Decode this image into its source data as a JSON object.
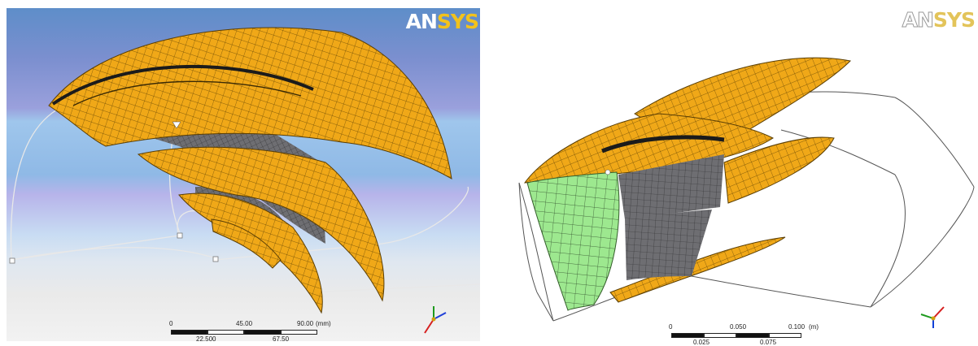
{
  "left_panel": {
    "logo": {
      "ans": "AN",
      "sys": "SYS"
    },
    "scale_bar": {
      "top_labels": [
        "0",
        "45.00",
        "90.00"
      ],
      "unit": "(mm)",
      "bottom_labels": [
        "22.500",
        "67.50"
      ]
    },
    "triad_icon": "xyz-axis-triad"
  },
  "right_panel": {
    "logo": {
      "ans": "AN",
      "sys": "SYS"
    },
    "scale_bar": {
      "top_labels": [
        "0",
        "0.050",
        "0.100"
      ],
      "unit": "(m)",
      "bottom_labels": [
        "0.025",
        "0.075"
      ]
    },
    "triad_icon": "xyz-axis-triad"
  },
  "colors": {
    "blade_orange": "#f0a818",
    "hub_gray": "#6e6e72",
    "inlet_green": "#9de88f",
    "bg_blue": "#6f98cc"
  }
}
